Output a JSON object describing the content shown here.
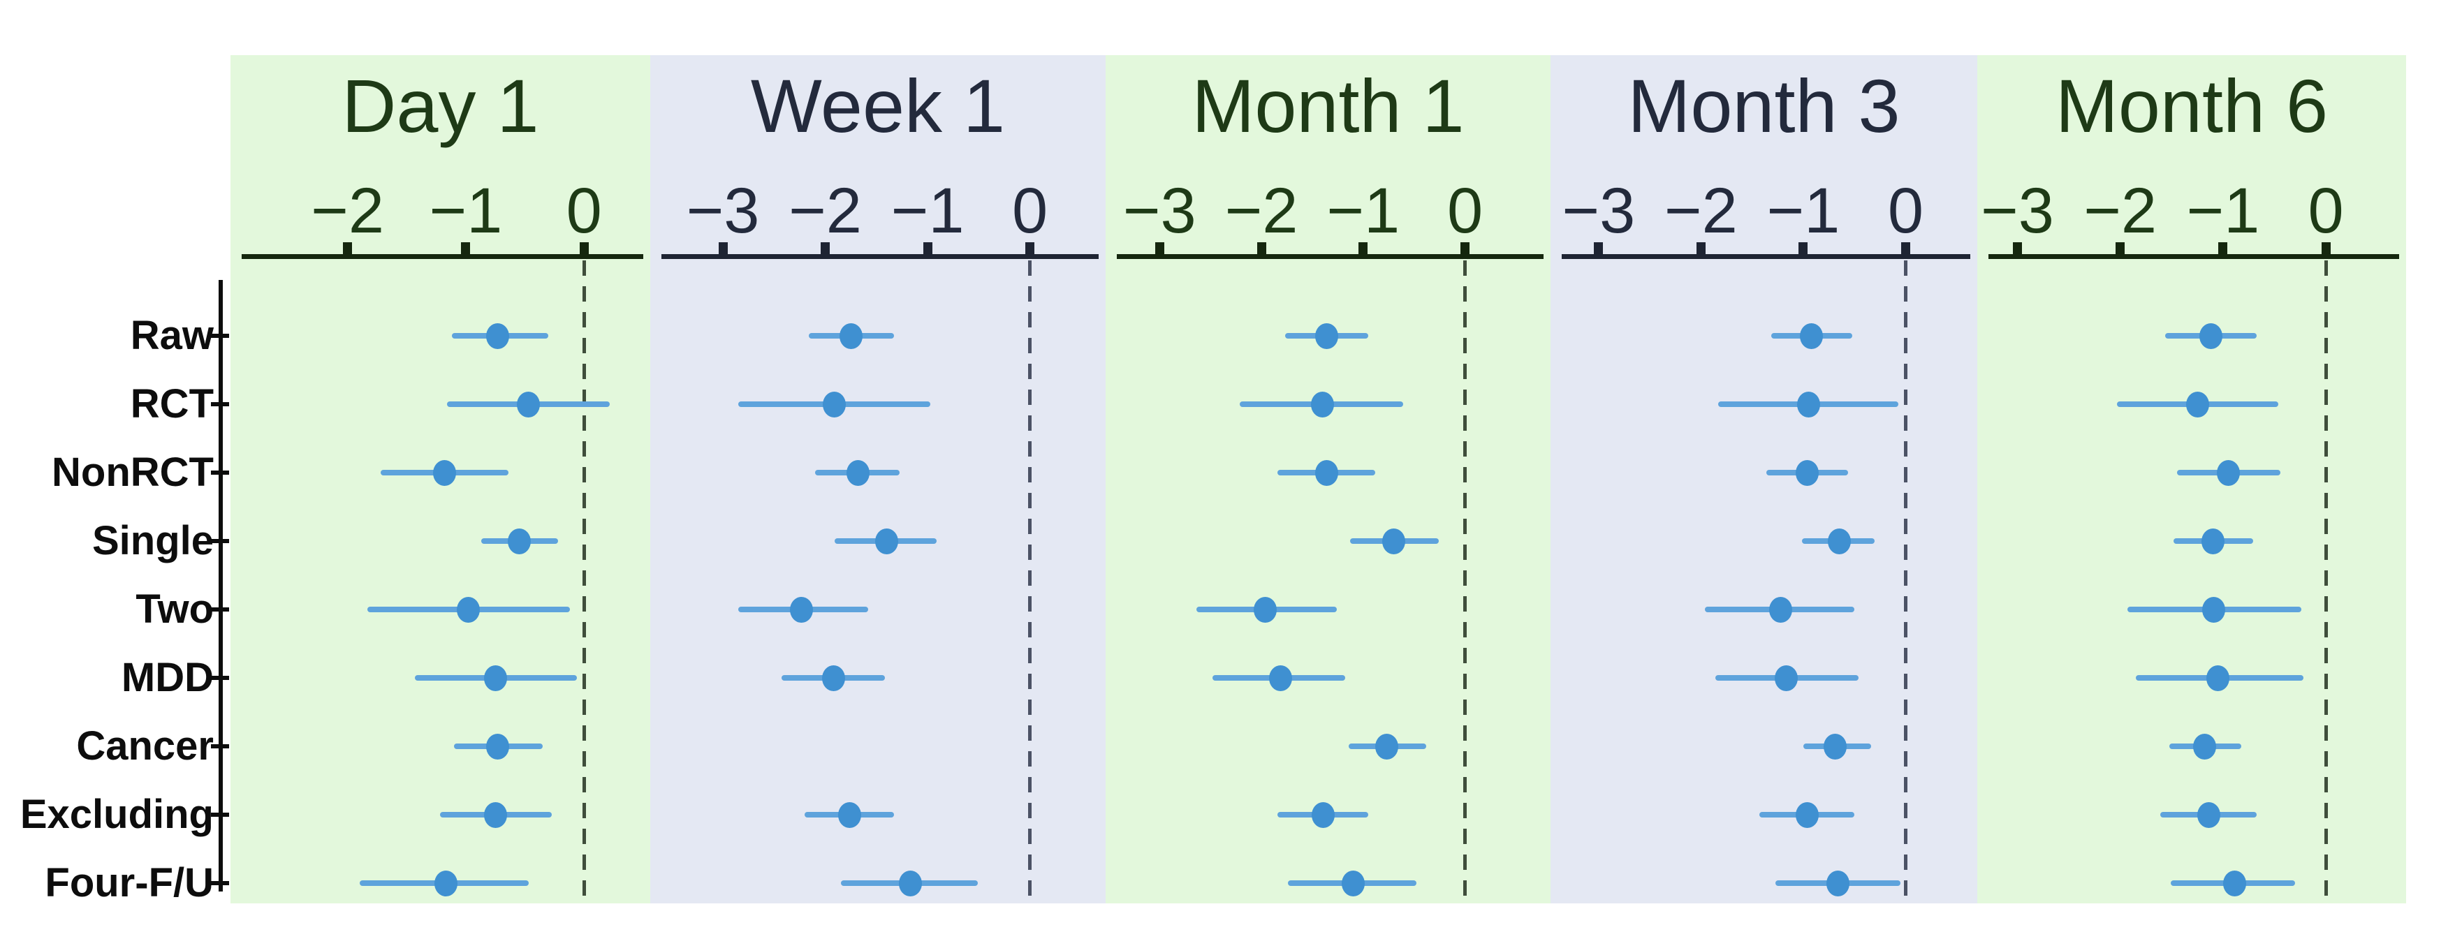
{
  "figure": {
    "description": "Forest plot of standardized mean differences with 95% CIs across five follow-up time points for nine sensitivity-analysis subgroups",
    "colors": {
      "page_bg": "#ffffff",
      "panel_green_bg": "#e3f8dc",
      "panel_blue_bg": "#e4e8f3",
      "ink_green": "#1e3a16",
      "ink_blue": "#232a3c",
      "axis_green": "#15270e",
      "axis_blue": "#1e2433",
      "dashed_green": "#3f4e3b",
      "dashed_blue": "#4b5265",
      "point_fill": "#3f90d1",
      "ci_line": "#5ea3dc",
      "label_ink": "#0d0d0d"
    }
  },
  "chart_data": {
    "type": "scatter",
    "variant": "forest-plot (point estimate with confidence interval, horizontal axis, shared category rows)",
    "categories": [
      "Raw",
      "RCT",
      "NonRCT",
      "Single",
      "Two",
      "MDD",
      "Cancer",
      "Excluding",
      "Four-F/U"
    ],
    "grid": false,
    "legend": "none",
    "zero_reference_line": 0,
    "panels": [
      {
        "title": "Day 1",
        "bg": "green",
        "ticks": [
          -2,
          -1,
          0
        ],
        "xlim": [
          -2.99,
          0.56
        ],
        "points": [
          {
            "value": -0.73,
            "lo": -1.12,
            "hi": -0.3
          },
          {
            "value": -0.47,
            "lo": -1.16,
            "hi": 0.22
          },
          {
            "value": -1.18,
            "lo": -1.72,
            "hi": -0.64
          },
          {
            "value": -0.55,
            "lo": -0.87,
            "hi": -0.22
          },
          {
            "value": -0.98,
            "lo": -1.83,
            "hi": -0.12
          },
          {
            "value": -0.75,
            "lo": -1.43,
            "hi": -0.06
          },
          {
            "value": -0.73,
            "lo": -1.1,
            "hi": -0.35
          },
          {
            "value": -0.75,
            "lo": -1.22,
            "hi": -0.27
          },
          {
            "value": -1.17,
            "lo": -1.9,
            "hi": -0.47
          }
        ]
      },
      {
        "title": "Week 1",
        "bg": "blue",
        "ticks": [
          -3,
          -2,
          -1,
          0
        ],
        "xlim": [
          -3.71,
          0.74
        ],
        "points": [
          {
            "value": -1.75,
            "lo": -2.16,
            "hi": -1.33
          },
          {
            "value": -1.91,
            "lo": -2.85,
            "hi": -0.97
          },
          {
            "value": -1.68,
            "lo": -2.1,
            "hi": -1.27
          },
          {
            "value": -1.4,
            "lo": -1.91,
            "hi": -0.91
          },
          {
            "value": -2.23,
            "lo": -2.85,
            "hi": -1.58
          },
          {
            "value": -1.92,
            "lo": -2.43,
            "hi": -1.42
          },
          null,
          {
            "value": -1.76,
            "lo": -2.2,
            "hi": -1.33
          },
          {
            "value": -1.17,
            "lo": -1.85,
            "hi": -0.51
          }
        ]
      },
      {
        "title": "Month 1",
        "bg": "green",
        "ticks": [
          -3,
          -2,
          -1,
          0
        ],
        "xlim": [
          -3.53,
          0.84
        ],
        "points": [
          {
            "value": -1.36,
            "lo": -1.77,
            "hi": -0.95
          },
          {
            "value": -1.4,
            "lo": -2.21,
            "hi": -0.61
          },
          {
            "value": -1.36,
            "lo": -1.84,
            "hi": -0.88
          },
          {
            "value": -0.7,
            "lo": -1.13,
            "hi": -0.26
          },
          {
            "value": -1.96,
            "lo": -2.64,
            "hi": -1.26
          },
          {
            "value": -1.81,
            "lo": -2.48,
            "hi": -1.18
          },
          {
            "value": -0.77,
            "lo": -1.14,
            "hi": -0.38
          },
          {
            "value": -1.39,
            "lo": -1.84,
            "hi": -0.95
          },
          {
            "value": -1.1,
            "lo": -1.74,
            "hi": -0.48
          }
        ]
      },
      {
        "title": "Month 3",
        "bg": "blue",
        "ticks": [
          -3,
          -2,
          -1,
          0
        ],
        "xlim": [
          -3.47,
          0.7
        ],
        "points": [
          {
            "value": -0.92,
            "lo": -1.31,
            "hi": -0.52
          },
          {
            "value": -0.95,
            "lo": -1.83,
            "hi": -0.07
          },
          {
            "value": -0.96,
            "lo": -1.36,
            "hi": -0.56
          },
          {
            "value": -0.65,
            "lo": -1.01,
            "hi": -0.3
          },
          {
            "value": -1.22,
            "lo": -1.96,
            "hi": -0.5
          },
          {
            "value": -1.17,
            "lo": -1.86,
            "hi": -0.46
          },
          {
            "value": -0.69,
            "lo": -1.0,
            "hi": -0.34
          },
          {
            "value": -0.96,
            "lo": -1.43,
            "hi": -0.5
          },
          {
            "value": -0.66,
            "lo": -1.27,
            "hi": -0.05
          }
        ]
      },
      {
        "title": "Month 6",
        "bg": "green",
        "ticks": [
          -3,
          -2,
          -1,
          0
        ],
        "xlim": [
          -3.39,
          0.78
        ],
        "points": [
          {
            "value": -1.12,
            "lo": -1.56,
            "hi": -0.67
          },
          {
            "value": -1.25,
            "lo": -2.03,
            "hi": -0.46
          },
          {
            "value": -0.95,
            "lo": -1.45,
            "hi": -0.44
          },
          {
            "value": -1.1,
            "lo": -1.48,
            "hi": -0.71
          },
          {
            "value": -1.09,
            "lo": -1.93,
            "hi": -0.24
          },
          {
            "value": -1.05,
            "lo": -1.85,
            "hi": -0.22
          },
          {
            "value": -1.18,
            "lo": -1.52,
            "hi": -0.82
          },
          {
            "value": -1.14,
            "lo": -1.61,
            "hi": -0.67
          },
          {
            "value": -0.89,
            "lo": -1.51,
            "hi": -0.3
          }
        ]
      }
    ]
  }
}
